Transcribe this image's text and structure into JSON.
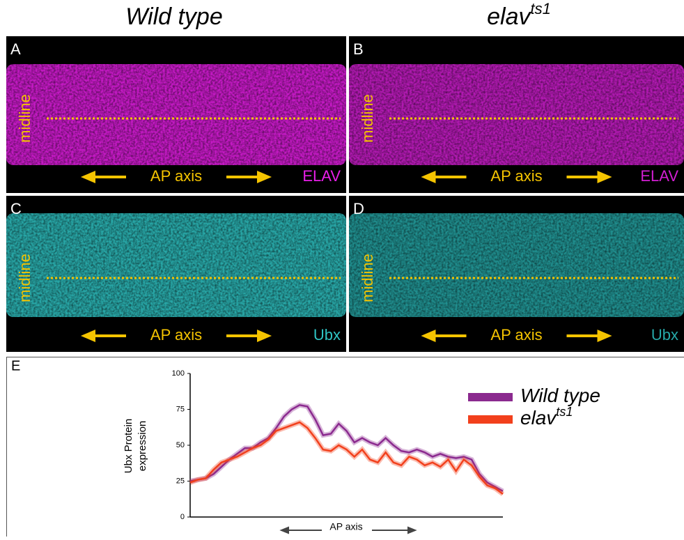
{
  "header": {
    "left": {
      "text": "Wild type"
    },
    "right": {
      "text": "elav",
      "sup": "ts1"
    }
  },
  "panels": [
    {
      "label": "A",
      "side": "midline",
      "axis": "AP axis",
      "marker": "ELAV",
      "color": "#e81ee8"
    },
    {
      "label": "B",
      "side": "midline",
      "axis": "AP axis",
      "marker": "ELAV",
      "color": "#d21ed2"
    },
    {
      "label": "C",
      "side": "midline",
      "axis": "AP axis",
      "marker": "Ubx",
      "color": "#2fc4c4"
    },
    {
      "label": "D",
      "side": "midline",
      "axis": "AP axis",
      "marker": "Ubx",
      "color": "#26a8a8"
    }
  ],
  "chart_data": {
    "type": "line",
    "label": "E",
    "ylabel": [
      "Ubx Protein",
      "expression"
    ],
    "xlabel": "AP axis",
    "ylim": [
      0,
      100
    ],
    "yticks": [
      0,
      25,
      50,
      75,
      100
    ],
    "series": [
      {
        "name": "Wild type",
        "color": "#8b2a8f",
        "values": [
          25,
          26,
          27,
          30,
          35,
          40,
          44,
          48,
          48,
          52,
          55,
          62,
          70,
          75,
          78,
          77,
          68,
          57,
          58,
          65,
          60,
          52,
          55,
          52,
          50,
          55,
          50,
          46,
          45,
          47,
          45,
          42,
          44,
          42,
          41,
          42,
          40,
          30,
          24,
          21,
          18
        ]
      },
      {
        "name": "elav",
        "sup": "ts1",
        "color": "#f2401c",
        "values": [
          24,
          26,
          27,
          33,
          38,
          40,
          42,
          45,
          48,
          50,
          54,
          60,
          62,
          64,
          66,
          62,
          55,
          47,
          46,
          50,
          47,
          42,
          47,
          40,
          38,
          45,
          38,
          36,
          42,
          40,
          36,
          38,
          35,
          40,
          32,
          40,
          36,
          28,
          22,
          20,
          16
        ]
      }
    ]
  }
}
